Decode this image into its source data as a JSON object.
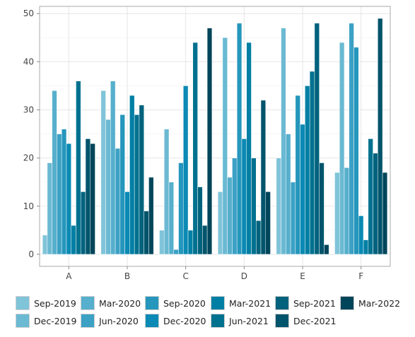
{
  "chart_data": {
    "type": "bar",
    "title": "",
    "xlabel": "",
    "ylabel": "",
    "categories": [
      "A",
      "B",
      "C",
      "D",
      "E",
      "F"
    ],
    "ylim": [
      -2.5,
      51.5
    ],
    "yticks": [
      0,
      10,
      20,
      30,
      40,
      50
    ],
    "grid": true,
    "legend_position": "bottom",
    "series": [
      {
        "name": "Sep-2019",
        "color": "#80c4d9",
        "values": [
          4,
          34,
          5,
          13,
          20,
          17
        ]
      },
      {
        "name": "Dec-2019",
        "color": "#6bb9d3",
        "values": [
          19,
          28,
          26,
          45,
          47,
          44
        ]
      },
      {
        "name": "Mar-2020",
        "color": "#56afcc",
        "values": [
          34,
          36,
          15,
          16,
          25,
          18
        ]
      },
      {
        "name": "Jun-2020",
        "color": "#3ca1c4",
        "values": [
          25,
          22,
          1,
          20,
          15,
          48
        ]
      },
      {
        "name": "Sep-2020",
        "color": "#2596bc",
        "values": [
          26,
          29,
          19,
          48,
          33,
          43
        ]
      },
      {
        "name": "Dec-2020",
        "color": "#0a8ab4",
        "values": [
          23,
          13,
          35,
          24,
          27,
          8
        ]
      },
      {
        "name": "Mar-2021",
        "color": "#007fa4",
        "values": [
          6,
          33,
          5,
          44,
          35,
          3
        ]
      },
      {
        "name": "Jun-2021",
        "color": "#00718f",
        "values": [
          36,
          29,
          44,
          20,
          38,
          24
        ]
      },
      {
        "name": "Sep-2021",
        "color": "#00627d",
        "values": [
          13,
          31,
          14,
          7,
          48,
          21
        ]
      },
      {
        "name": "Dec-2021",
        "color": "#00546b",
        "values": [
          24,
          9,
          6,
          32,
          19,
          49
        ]
      },
      {
        "name": "Mar-2022",
        "color": "#00455a",
        "values": [
          23,
          16,
          47,
          13,
          2,
          17
        ]
      }
    ],
    "colors": {
      "axis_frame": "#aaaaaa",
      "gridline": "#e6e6e6",
      "tick_text": "#444444"
    }
  }
}
